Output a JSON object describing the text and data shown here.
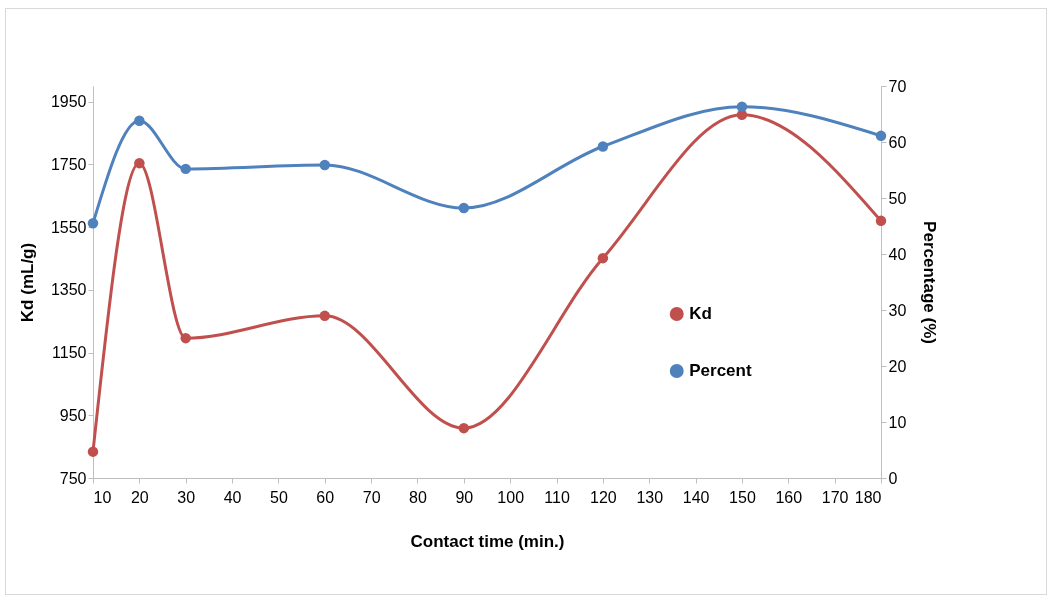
{
  "chart_data": {
    "type": "line",
    "xlabel": "Contact time (min.)",
    "ylabel": "Kd (mL/g)",
    "y2label": "Percentage (%)",
    "x": [
      10,
      20,
      30,
      60,
      90,
      120,
      150,
      180
    ],
    "series": [
      {
        "name": "Kd",
        "color": "#c0504d",
        "values": [
          834,
          1754,
          1196,
          1267,
          909,
          1451,
          1908,
          1570
        ]
      },
      {
        "name": "Percent",
        "color": "#4f81bd",
        "axis": "y2",
        "values": [
          45.5,
          63.8,
          55.2,
          55.9,
          48.2,
          59.2,
          66.3,
          61.1
        ]
      }
    ],
    "xlim": [
      10,
      180
    ],
    "xticks": [
      10,
      20,
      30,
      40,
      50,
      60,
      70,
      80,
      90,
      100,
      110,
      120,
      130,
      140,
      150,
      160,
      170,
      180
    ],
    "ylim": [
      750,
      2000
    ],
    "yticks": [
      750,
      950,
      1150,
      1350,
      1550,
      1750,
      1950
    ],
    "y2lim": [
      0,
      70
    ],
    "y2ticks": [
      0,
      10,
      20,
      30,
      40,
      50,
      60,
      70
    ],
    "legend": "right",
    "marker": "circle"
  }
}
